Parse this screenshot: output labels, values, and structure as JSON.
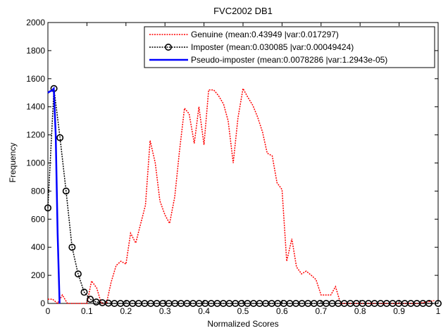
{
  "chart_data": {
    "type": "line",
    "title": "FVC2002 DB1",
    "xlabel": "Normalized Scores",
    "ylabel": "Frequency",
    "xlim": [
      0,
      1
    ],
    "ylim": [
      0,
      2000
    ],
    "xticks": [
      "0",
      "0.1",
      "0.2",
      "0.3",
      "0.4",
      "0.5",
      "0.6",
      "0.7",
      "0.8",
      "0.9",
      "1"
    ],
    "yticks": [
      "0",
      "200",
      "400",
      "600",
      "800",
      "1000",
      "1200",
      "1400",
      "1600",
      "1800",
      "2000"
    ],
    "grid": false,
    "legend_position": "top-right",
    "series": [
      {
        "name": "Genuine (mean:0.43949 |var:0.017297)",
        "color": "#ff0000",
        "style": "dotted",
        "marker": "none",
        "x": [
          0,
          0.012,
          0.025,
          0.037,
          0.05,
          0.062,
          0.075,
          0.087,
          0.1,
          0.112,
          0.125,
          0.137,
          0.15,
          0.162,
          0.175,
          0.187,
          0.2,
          0.212,
          0.225,
          0.237,
          0.25,
          0.262,
          0.275,
          0.287,
          0.3,
          0.312,
          0.325,
          0.337,
          0.35,
          0.362,
          0.375,
          0.387,
          0.4,
          0.412,
          0.425,
          0.437,
          0.45,
          0.462,
          0.475,
          0.487,
          0.5,
          0.512,
          0.525,
          0.537,
          0.55,
          0.562,
          0.575,
          0.587,
          0.6,
          0.612,
          0.625,
          0.637,
          0.65,
          0.662,
          0.675,
          0.687,
          0.7,
          0.712,
          0.725,
          0.737,
          0.75,
          0.762,
          0.775,
          0.787,
          0.8,
          0.85,
          0.9,
          0.95,
          0.99
        ],
        "y": [
          30,
          30,
          0,
          60,
          0,
          0,
          0,
          0,
          0,
          160,
          110,
          0,
          0,
          150,
          270,
          300,
          280,
          500,
          430,
          560,
          700,
          1160,
          1000,
          730,
          630,
          570,
          760,
          1080,
          1390,
          1350,
          1140,
          1400,
          1130,
          1520,
          1520,
          1480,
          1420,
          1300,
          1000,
          1320,
          1530,
          1470,
          1410,
          1330,
          1220,
          1070,
          1050,
          860,
          810,
          300,
          460,
          260,
          210,
          230,
          200,
          170,
          60,
          60,
          60,
          120,
          0,
          0,
          0,
          0,
          0,
          0,
          0,
          0,
          20
        ]
      },
      {
        "name": "Imposter (mean:0.030085 |var:0.00049424)",
        "color": "#000000",
        "style": "dotted",
        "marker": "circle",
        "x": [
          0,
          0.0155,
          0.031,
          0.0465,
          0.062,
          0.0775,
          0.093,
          0.1085,
          0.124,
          0.1395,
          0.155,
          0.1705,
          0.186,
          0.2015,
          0.217,
          0.2325,
          0.248,
          0.2635,
          0.279,
          0.2945,
          0.31,
          0.3255,
          0.341,
          0.3565,
          0.372,
          0.3875,
          0.403,
          0.4185,
          0.434,
          0.4495,
          0.465,
          0.4805,
          0.496,
          0.5115,
          0.527,
          0.5425,
          0.558,
          0.5735,
          0.589,
          0.6045,
          0.62,
          0.6355,
          0.651,
          0.6665,
          0.682,
          0.6975,
          0.713,
          0.7285,
          0.744,
          0.7595,
          0.775,
          0.7905,
          0.806,
          0.8215,
          0.837,
          0.8525,
          0.868,
          0.8835,
          0.899,
          0.9145,
          0.93,
          0.9455,
          0.961,
          0.9765,
          1.0
        ],
        "y": [
          680,
          1530,
          1180,
          800,
          400,
          210,
          80,
          30,
          10,
          5,
          2,
          0,
          0,
          0,
          0,
          0,
          0,
          0,
          0,
          0,
          0,
          0,
          0,
          0,
          0,
          0,
          0,
          0,
          0,
          0,
          0,
          0,
          0,
          0,
          0,
          0,
          0,
          0,
          0,
          0,
          0,
          0,
          0,
          0,
          0,
          0,
          0,
          0,
          0,
          0,
          0,
          0,
          0,
          0,
          0,
          0,
          0,
          0,
          0,
          0,
          0,
          0,
          0,
          0,
          0
        ]
      },
      {
        "name": "Pseudo-imposter (mean:0.0078286 |var:1.2943e-05)",
        "color": "#0000ff",
        "style": "solid",
        "marker": "none",
        "x": [
          0,
          0.005,
          0.01,
          0.015,
          0.02,
          0.025,
          0.03
        ],
        "y": [
          1500,
          1510,
          1515,
          1530,
          1200,
          500,
          0
        ]
      }
    ]
  }
}
